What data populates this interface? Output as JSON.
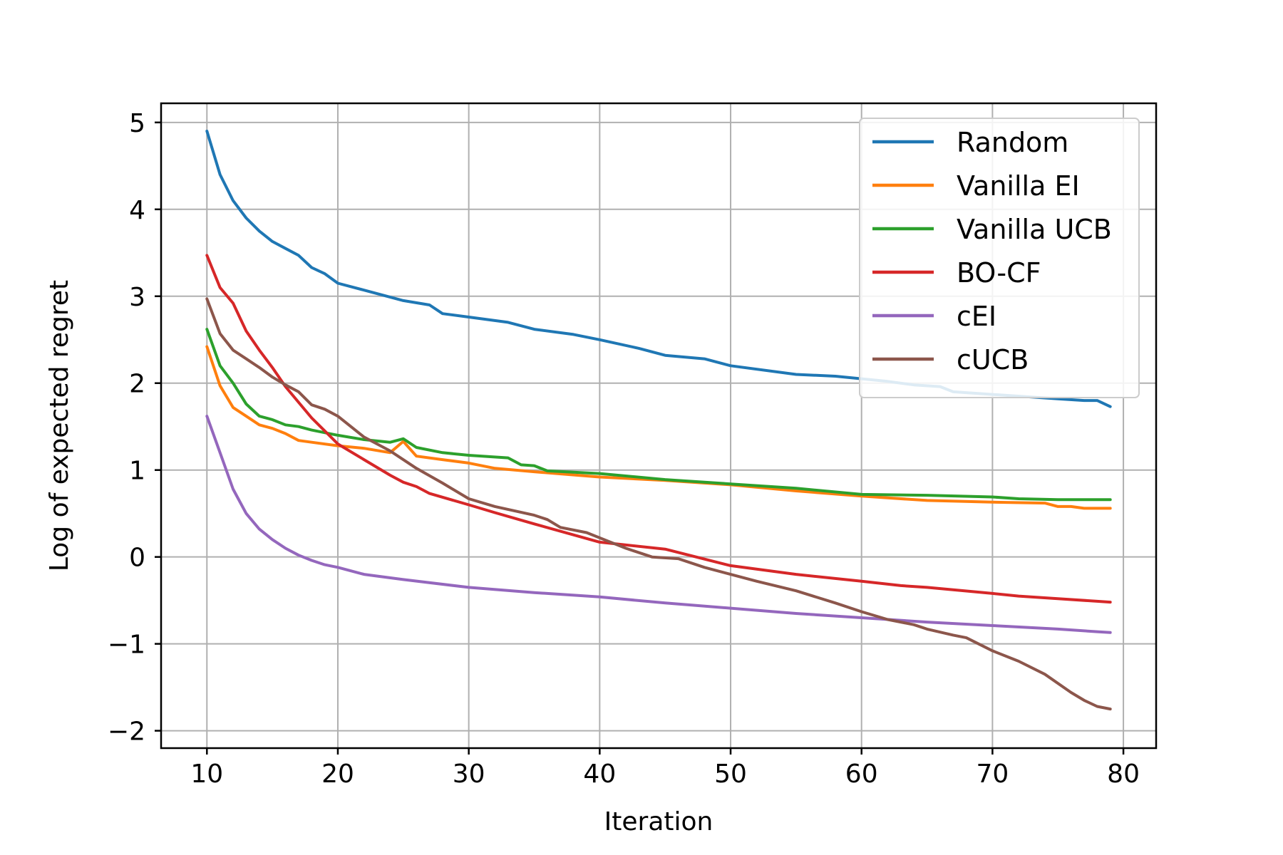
{
  "chart_data": {
    "type": "line",
    "title": "",
    "xlabel": "Iteration",
    "ylabel": "Log of expected regret",
    "xlim": [
      6.5,
      82.5
    ],
    "ylim": [
      -2.2,
      5.22
    ],
    "xticks": [
      10,
      20,
      30,
      40,
      50,
      60,
      70,
      80
    ],
    "yticks": [
      -2,
      -1,
      0,
      1,
      2,
      3,
      4,
      5
    ],
    "xtick_labels": [
      "10",
      "20",
      "30",
      "40",
      "50",
      "60",
      "70",
      "80"
    ],
    "ytick_labels": [
      "−2",
      "−1",
      "0",
      "1",
      "2",
      "3",
      "4",
      "5"
    ],
    "grid": true,
    "legend_position": "top-right",
    "series": [
      {
        "name": "Random",
        "color": "#1f77b4",
        "x": [
          10,
          11,
          12,
          13,
          14,
          15,
          16,
          17,
          18,
          19,
          20,
          22,
          25,
          27,
          28,
          30,
          33,
          35,
          38,
          40,
          43,
          45,
          48,
          50,
          55,
          58,
          60,
          62,
          64,
          66,
          67,
          70,
          73,
          75,
          77,
          78,
          79
        ],
        "y": [
          4.9,
          4.4,
          4.1,
          3.9,
          3.75,
          3.63,
          3.55,
          3.47,
          3.33,
          3.26,
          3.15,
          3.07,
          2.95,
          2.9,
          2.8,
          2.76,
          2.7,
          2.62,
          2.56,
          2.5,
          2.4,
          2.32,
          2.28,
          2.2,
          2.1,
          2.08,
          2.05,
          2.02,
          1.98,
          1.96,
          1.9,
          1.87,
          1.84,
          1.82,
          1.8,
          1.8,
          1.73
        ]
      },
      {
        "name": "Vanilla EI",
        "color": "#ff7f0e",
        "x": [
          10,
          11,
          12,
          13,
          14,
          15,
          16,
          17,
          18,
          20,
          22,
          24,
          25,
          26,
          28,
          30,
          32,
          35,
          40,
          45,
          50,
          55,
          60,
          65,
          70,
          74,
          75,
          76,
          77,
          78,
          79
        ],
        "y": [
          2.42,
          1.97,
          1.72,
          1.62,
          1.52,
          1.48,
          1.42,
          1.34,
          1.32,
          1.28,
          1.25,
          1.2,
          1.33,
          1.16,
          1.12,
          1.08,
          1.02,
          0.98,
          0.92,
          0.88,
          0.83,
          0.76,
          0.7,
          0.65,
          0.63,
          0.62,
          0.58,
          0.58,
          0.56,
          0.56,
          0.56
        ]
      },
      {
        "name": "Vanilla UCB",
        "color": "#2ca02c",
        "x": [
          10,
          11,
          12,
          13,
          14,
          15,
          16,
          17,
          18,
          20,
          22,
          24,
          25,
          26,
          28,
          30,
          33,
          34,
          35,
          36,
          40,
          45,
          50,
          55,
          60,
          65,
          70,
          72,
          75,
          79
        ],
        "y": [
          2.62,
          2.2,
          2.0,
          1.76,
          1.62,
          1.58,
          1.52,
          1.5,
          1.46,
          1.4,
          1.35,
          1.32,
          1.36,
          1.26,
          1.2,
          1.17,
          1.14,
          1.06,
          1.05,
          0.99,
          0.96,
          0.89,
          0.84,
          0.79,
          0.72,
          0.71,
          0.69,
          0.67,
          0.66,
          0.66
        ]
      },
      {
        "name": "BO-CF",
        "color": "#d62728",
        "x": [
          10,
          11,
          12,
          13,
          14,
          15,
          16,
          18,
          20,
          22,
          24,
          25,
          26,
          27,
          30,
          32,
          35,
          40,
          45,
          50,
          55,
          60,
          63,
          65,
          70,
          72,
          75,
          78,
          79
        ],
        "y": [
          3.47,
          3.1,
          2.92,
          2.6,
          2.38,
          2.18,
          1.96,
          1.6,
          1.3,
          1.12,
          0.94,
          0.86,
          0.81,
          0.73,
          0.6,
          0.51,
          0.38,
          0.17,
          0.09,
          -0.1,
          -0.2,
          -0.28,
          -0.33,
          -0.35,
          -0.42,
          -0.45,
          -0.48,
          -0.51,
          -0.52
        ]
      },
      {
        "name": "cEI",
        "color": "#9467bd",
        "x": [
          10,
          11,
          12,
          13,
          14,
          15,
          16,
          17,
          18,
          19,
          20,
          22,
          25,
          30,
          35,
          40,
          45,
          50,
          55,
          60,
          65,
          70,
          75,
          78,
          79
        ],
        "y": [
          1.62,
          1.2,
          0.78,
          0.5,
          0.32,
          0.2,
          0.1,
          0.02,
          -0.04,
          -0.09,
          -0.12,
          -0.2,
          -0.26,
          -0.35,
          -0.41,
          -0.46,
          -0.53,
          -0.59,
          -0.65,
          -0.7,
          -0.75,
          -0.79,
          -0.83,
          -0.86,
          -0.87
        ]
      },
      {
        "name": "cUCB",
        "color": "#8c564b",
        "x": [
          10,
          11,
          12,
          13,
          14,
          15,
          16,
          17,
          18,
          19,
          20,
          22,
          24,
          26,
          28,
          30,
          32,
          35,
          36,
          37,
          39,
          40,
          42,
          44,
          46,
          48,
          50,
          52,
          55,
          58,
          60,
          62,
          64,
          65,
          67,
          68,
          70,
          72,
          74,
          76,
          77,
          78,
          79
        ],
        "y": [
          2.97,
          2.57,
          2.38,
          2.28,
          2.18,
          2.07,
          1.98,
          1.9,
          1.75,
          1.7,
          1.62,
          1.38,
          1.22,
          1.02,
          0.85,
          0.67,
          0.58,
          0.48,
          0.43,
          0.34,
          0.28,
          0.22,
          0.1,
          0.0,
          -0.02,
          -0.12,
          -0.2,
          -0.28,
          -0.39,
          -0.53,
          -0.63,
          -0.72,
          -0.78,
          -0.83,
          -0.9,
          -0.93,
          -1.08,
          -1.2,
          -1.35,
          -1.56,
          -1.65,
          -1.72,
          -1.75
        ]
      }
    ]
  }
}
